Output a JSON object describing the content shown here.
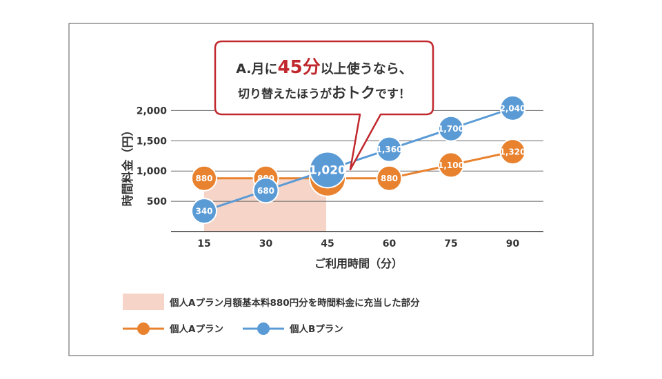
{
  "chart_data": {
    "type": "line",
    "xlabel": "ご利用時間（分）",
    "ylabel": "時間料金（円）",
    "categories": [
      "15",
      "30",
      "45",
      "60",
      "75",
      "90"
    ],
    "yticks": [
      500,
      1000,
      1500,
      2000
    ],
    "ytick_labels": [
      "500",
      "1,000",
      "1,500",
      "2,000"
    ],
    "ylim": [
      0,
      2100
    ],
    "grid": true,
    "legend_position": "bottom",
    "shaded_region": {
      "label": "個人Aプラン月額基本料880円分を時間料金に充当した部分",
      "x_range": [
        "15",
        "45"
      ],
      "y_range": [
        0,
        880
      ],
      "color": "#f6d5c8"
    },
    "series": [
      {
        "name": "個人Aプラン",
        "color": "#e8822f",
        "values": [
          880,
          880,
          880,
          880,
          1100,
          1320
        ],
        "labels": [
          "880",
          "880",
          "880",
          "880",
          "1,100",
          "1,320"
        ]
      },
      {
        "name": "個人Bプラン",
        "color": "#5b9bd5",
        "values": [
          340,
          680,
          1020,
          1360,
          1700,
          2040
        ],
        "labels": [
          "340",
          "680",
          "1,020",
          "1,360",
          "1,700",
          "2,040"
        ]
      }
    ],
    "highlight_category": "45",
    "annotation": {
      "line1_prefix": "A.月に",
      "line1_highlight": "45分",
      "line1_suffix": "以上使うなら、",
      "line2_prefix": "切り替えたほうが",
      "line2_highlight": "おトク",
      "line2_suffix": "です！",
      "border_color": "#c0282d",
      "highlight_color": "#c0282d"
    }
  }
}
